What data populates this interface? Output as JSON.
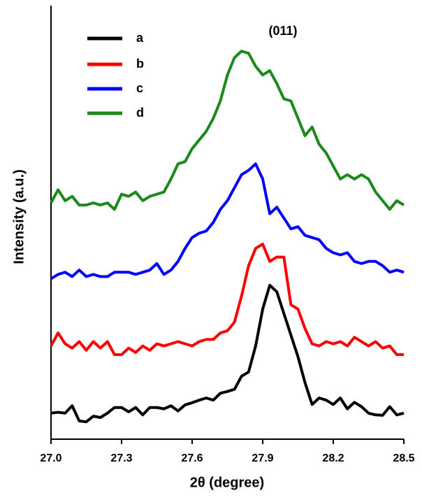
{
  "chart_data": {
    "type": "line",
    "xlabel": "2θ (degree)",
    "ylabel": "Intensity (a.u.)",
    "annotation": "(011)",
    "x": [
      27.0,
      27.03,
      27.06,
      27.09,
      27.12,
      27.15,
      27.18,
      27.21,
      27.24,
      27.27,
      27.3,
      27.33,
      27.36,
      27.39,
      27.42,
      27.45,
      27.48,
      27.51,
      27.54,
      27.57,
      27.6,
      27.63,
      27.66,
      27.69,
      27.72,
      27.75,
      27.78,
      27.81,
      27.84,
      27.87,
      27.9,
      27.93,
      27.96,
      27.99,
      28.02,
      28.05,
      28.08,
      28.11,
      28.14,
      28.17,
      28.2,
      28.23,
      28.26,
      28.29,
      28.32,
      28.35,
      28.38,
      28.41,
      28.44,
      28.47,
      28.5
    ],
    "series": [
      {
        "name": "a",
        "color": "#000000",
        "values": [
          6,
          6.2,
          6,
          7.7,
          4.2,
          4,
          5.3,
          5,
          6,
          7.3,
          7.3,
          6.3,
          7.3,
          5.6,
          7.3,
          7.3,
          7,
          7.7,
          6.5,
          7.9,
          8.4,
          9,
          9.5,
          9,
          10.6,
          11,
          11.5,
          14.5,
          15.5,
          21.5,
          30,
          35.5,
          34,
          29,
          24,
          19,
          13,
          8,
          9.5,
          9,
          8,
          9.5,
          7,
          8.5,
          7.5,
          6,
          5.6,
          5.5,
          7.5,
          5.6,
          6
        ]
      },
      {
        "name": "b",
        "color": "#ff0000",
        "values": [
          21.5,
          24.5,
          22,
          21,
          22.5,
          20.5,
          22.5,
          21,
          22.5,
          19.5,
          19.5,
          21,
          20,
          21.5,
          20.5,
          22,
          21.5,
          22,
          22.5,
          22,
          21.5,
          22.5,
          23,
          23,
          24.5,
          25,
          27,
          33,
          40,
          44,
          45,
          41,
          42,
          42,
          31,
          30,
          25.5,
          22,
          21.5,
          22.5,
          22,
          22.5,
          21.5,
          23.5,
          22.5,
          21.5,
          22.5,
          21,
          21.5,
          19.5,
          19.5
        ]
      },
      {
        "name": "c",
        "color": "#0000ff",
        "values": [
          37,
          38,
          38.5,
          37.5,
          39,
          37.5,
          38,
          37.5,
          37.5,
          38.5,
          38.5,
          38.5,
          38,
          38.5,
          39,
          40.5,
          38,
          39,
          41,
          44,
          46.5,
          47.5,
          48,
          50,
          53,
          55,
          58,
          61,
          62,
          63.5,
          60,
          52,
          53.5,
          51,
          48.5,
          49,
          47,
          46.5,
          46,
          44,
          43,
          42.5,
          43,
          41,
          40.5,
          41,
          41,
          40,
          38.5,
          39,
          38.5
        ]
      },
      {
        "name": "d",
        "color": "#1a8a1a",
        "values": [
          54.5,
          57.5,
          55,
          56,
          54,
          54,
          54.5,
          54,
          54.5,
          53,
          56.5,
          56,
          57,
          55,
          56,
          56.5,
          57,
          60,
          63.5,
          64,
          67,
          69,
          71,
          74,
          78,
          84,
          88,
          89.5,
          89,
          86,
          84,
          85,
          82,
          78.5,
          78,
          74,
          70,
          72,
          68,
          66,
          63,
          60,
          61,
          60,
          61,
          60,
          57,
          55,
          53,
          55,
          54
        ]
      }
    ],
    "xlim": [
      27.0,
      28.5
    ],
    "xticks": [
      {
        "value": 27.0,
        "label": "27.0"
      },
      27.3,
      27.6,
      27.9,
      28.2,
      28.5
    ],
    "ylim": [
      0,
      100
    ]
  }
}
